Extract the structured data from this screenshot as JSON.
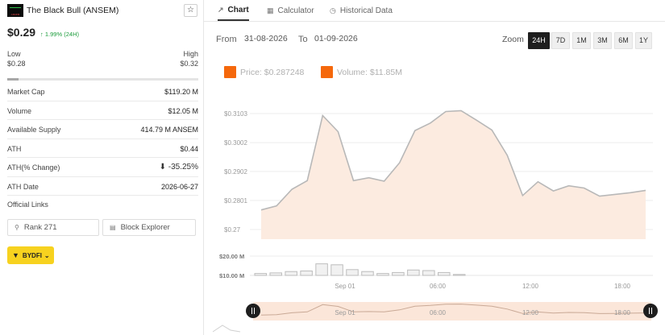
{
  "coin": {
    "name": "The Black Bull (ANSEM)",
    "logo_text": "ANSEM",
    "price": "$0.29",
    "change": "↑ 1.99% (24H)",
    "low_label": "Low",
    "low_value": "$0.28",
    "high_label": "High",
    "high_value": "$0.32",
    "range_fraction": 0.06
  },
  "stats": [
    {
      "label": "Market Cap",
      "value": "$119.20 M"
    },
    {
      "label": "Volume",
      "value": "$12.05 M"
    },
    {
      "label": "Available Supply",
      "value": "414.79 M ANSEM"
    },
    {
      "label": "ATH",
      "value": "$0.44"
    },
    {
      "label": "ATH(% Change)",
      "value": "⬇ -35.25%"
    },
    {
      "label": "ATH Date",
      "value": "2026-06-27"
    }
  ],
  "links": {
    "label": "Official Links",
    "rank": "Rank 271",
    "explorer": "Block Explorer"
  },
  "exchange": {
    "label": "BYDFI"
  },
  "tabs": [
    {
      "label": "Chart",
      "icon": "chart-line-icon",
      "glyph": "↗"
    },
    {
      "label": "Calculator",
      "icon": "calculator-icon",
      "glyph": "▦"
    },
    {
      "label": "Historical Data",
      "icon": "history-icon",
      "glyph": "◷"
    }
  ],
  "range": {
    "from_label": "From",
    "from": "31-08-2026",
    "to_label": "To",
    "to": "01-09-2026"
  },
  "zoom": {
    "label": "Zoom",
    "options": [
      "24H",
      "7D",
      "1M",
      "3M",
      "6M",
      "1Y"
    ],
    "active": "24H"
  },
  "legend": {
    "price": "Price: $0.287248",
    "volume": "Volume: $11.85M"
  },
  "colors": {
    "accent": "#f5680c",
    "line": "#b8b8b8",
    "area": "#fcebe0",
    "range_dark": "#1e1e1e"
  },
  "chart_data": {
    "type": "area",
    "price_series": {
      "y_ticks": [
        "$0.3103",
        "$0.3002",
        "$0.2902",
        "$0.2801",
        "$0.27"
      ],
      "y_tick_values": [
        0.3103,
        0.3002,
        0.2902,
        0.2801,
        0.27
      ],
      "x_labels": [
        "Sep 01",
        "06:00",
        "12:00",
        "18:00"
      ],
      "values": [
        0.2768,
        0.2782,
        0.284,
        0.287,
        0.3096,
        0.304,
        0.287,
        0.288,
        0.2868,
        0.2932,
        0.3044,
        0.307,
        0.311,
        0.3113,
        0.308,
        0.3046,
        0.2958,
        0.2818,
        0.2866,
        0.2834,
        0.2852,
        0.2844,
        0.2816,
        0.2822,
        0.2828,
        0.2836
      ]
    },
    "volume_series": {
      "y_ticks": [
        "$20.00 M",
        "$10.00 M"
      ],
      "values_millions": [
        11.0,
        11.3,
        12.0,
        12.3,
        16.0,
        15.5,
        13.0,
        12.0,
        11.0,
        11.5,
        12.8,
        12.5,
        11.5,
        10.5,
        9.5,
        9.0,
        9.0,
        8.6,
        9.3,
        9.0,
        8.8,
        9.0,
        8.5,
        7.0,
        7.8,
        8.5
      ]
    },
    "navigator": {
      "x_labels": [
        "Sep 01",
        "06:00",
        "12:00",
        "18:00"
      ]
    }
  }
}
